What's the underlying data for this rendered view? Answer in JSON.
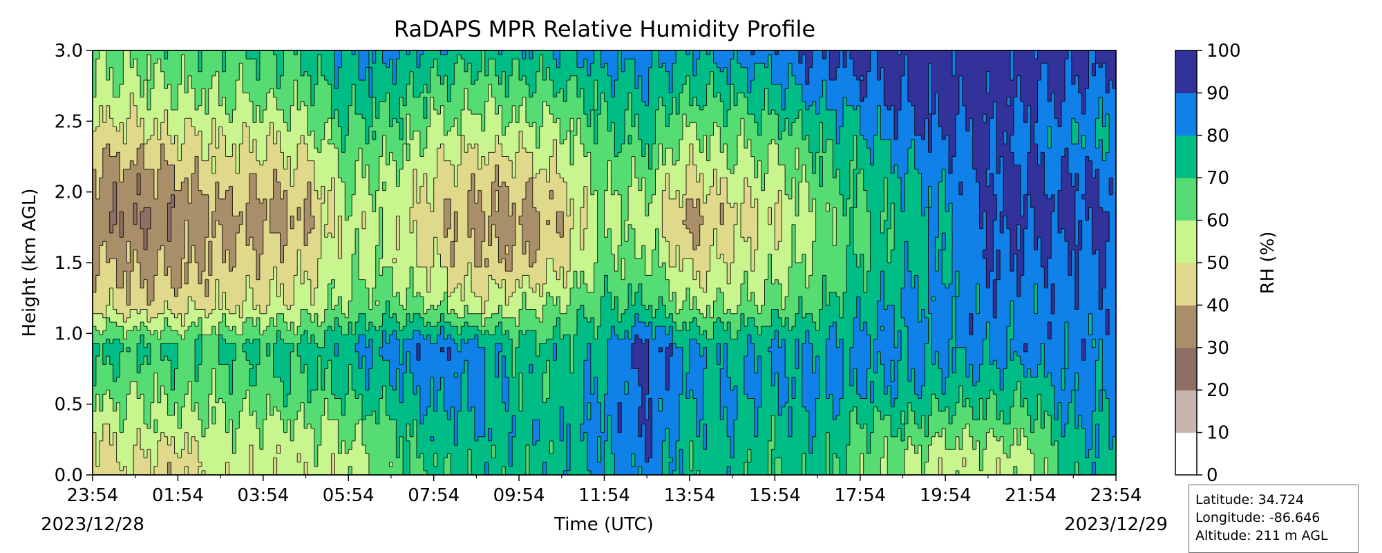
{
  "chart_data": {
    "type": "contourf",
    "title": "RaDAPS MPR Relative Humidity Profile",
    "xlabel": "Time (UTC)",
    "ylabel": "Height (km AGL)",
    "x_ticks": [
      "23:54",
      "01:54",
      "03:54",
      "05:54",
      "07:54",
      "09:54",
      "11:54",
      "13:54",
      "15:54",
      "17:54",
      "19:54",
      "21:54",
      "23:54"
    ],
    "x_start_date": "2023/12/28",
    "x_end_date": "2023/12/29",
    "y_ticks": [
      "0.0",
      "0.5",
      "1.0",
      "1.5",
      "2.0",
      "2.5",
      "3.0"
    ],
    "ylim": [
      0,
      3
    ],
    "colorbar": {
      "label": "RH (%)",
      "ticks": [
        "0",
        "10",
        "20",
        "30",
        "40",
        "50",
        "60",
        "70",
        "80",
        "90",
        "100"
      ],
      "levels": [
        0,
        10,
        20,
        30,
        40,
        50,
        60,
        70,
        80,
        90,
        100
      ],
      "colors": [
        "#ffffff",
        "#c7b5b1",
        "#8e6f66",
        "#a98f69",
        "#e0d88b",
        "#c9f58e",
        "#55dc72",
        "#00bd86",
        "#0f81e8",
        "#33329b"
      ]
    },
    "time_axis": [
      0,
      1,
      2,
      3,
      4,
      5,
      6,
      7,
      8,
      9,
      10,
      11,
      12,
      13,
      14,
      15,
      16,
      17,
      18,
      19,
      20,
      21,
      22,
      23,
      24
    ],
    "heights_km": [
      0.1,
      0.3,
      0.6,
      0.9,
      1.2,
      1.5,
      1.8,
      2.1,
      2.4,
      2.7,
      3.0
    ],
    "rh_percent": [
      [
        45,
        50,
        65,
        73,
        48,
        40,
        32,
        37,
        47,
        57,
        62
      ],
      [
        50,
        56,
        62,
        72,
        44,
        38,
        31,
        36,
        47,
        56,
        64
      ],
      [
        44,
        54,
        63,
        70,
        46,
        37,
        33,
        38,
        50,
        60,
        66
      ],
      [
        55,
        57,
        64,
        71,
        48,
        43,
        38,
        45,
        52,
        61,
        68
      ],
      [
        54,
        56,
        66,
        72,
        50,
        44,
        36,
        43,
        52,
        63,
        70
      ],
      [
        54,
        57,
        68,
        72,
        54,
        45,
        38,
        46,
        55,
        64,
        73
      ],
      [
        55,
        60,
        72,
        79,
        61,
        58,
        56,
        61,
        68,
        76,
        82
      ],
      [
        66,
        67,
        76,
        84,
        64,
        57,
        55,
        58,
        67,
        73,
        82
      ],
      [
        72,
        76,
        82,
        88,
        59,
        49,
        44,
        49,
        58,
        66,
        78
      ],
      [
        74,
        78,
        82,
        84,
        52,
        43,
        37,
        44,
        54,
        63,
        75
      ],
      [
        74,
        76,
        73,
        74,
        56,
        41,
        36,
        43,
        55,
        66,
        77
      ],
      [
        75,
        78,
        73,
        74,
        61,
        48,
        43,
        50,
        57,
        68,
        79
      ],
      [
        80,
        83,
        82,
        80,
        68,
        63,
        58,
        62,
        68,
        74,
        84
      ],
      [
        86,
        89,
        90,
        94,
        71,
        62,
        57,
        63,
        71,
        77,
        83
      ],
      [
        74,
        76,
        81,
        80,
        58,
        47,
        36,
        48,
        58,
        70,
        80
      ],
      [
        76,
        78,
        80,
        78,
        60,
        52,
        46,
        55,
        63,
        72,
        84
      ],
      [
        72,
        74,
        80,
        81,
        64,
        54,
        49,
        57,
        65,
        76,
        86
      ],
      [
        74,
        77,
        82,
        80,
        68,
        62,
        60,
        66,
        72,
        82,
        92
      ],
      [
        64,
        68,
        79,
        83,
        75,
        70,
        68,
        72,
        78,
        86,
        94
      ],
      [
        60,
        68,
        78,
        82,
        80,
        76,
        74,
        77,
        86,
        92,
        95
      ],
      [
        54,
        62,
        76,
        82,
        84,
        80,
        79,
        84,
        90,
        94,
        95
      ],
      [
        54,
        63,
        74,
        83,
        85,
        89,
        90,
        92,
        92,
        95,
        95
      ],
      [
        56,
        64,
        74,
        84,
        84,
        87,
        93,
        91,
        86,
        92,
        94
      ],
      [
        74,
        79,
        84,
        84,
        86,
        88,
        92,
        90,
        82,
        90,
        94
      ],
      [
        78,
        80,
        80,
        82,
        86,
        89,
        91,
        90,
        78,
        86,
        94
      ]
    ],
    "info": {
      "latitude": "Latitude: 34.724",
      "longitude": "Longitude: -86.646",
      "altitude": "Altitude: 211 m AGL"
    }
  }
}
